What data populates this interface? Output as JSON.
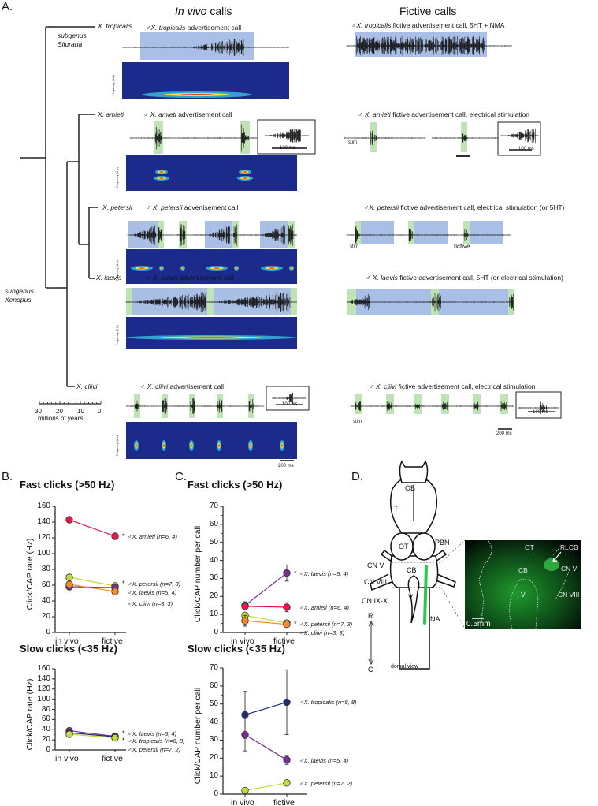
{
  "panels": {
    "a": "A.",
    "b": "B.",
    "c": "C.",
    "d": "D."
  },
  "headers": {
    "in_vivo_italic": "In vivo",
    "in_vivo_rest": " calls",
    "fictive": "Fictive calls"
  },
  "tree": {
    "species": [
      "X. tropicalis",
      "X. amieti",
      "X. petersii",
      "X. laevis",
      "X. cliivi"
    ],
    "subgenus_silurana": [
      "subgenus",
      "Silurana"
    ],
    "subgenus_xenopus": [
      "subgenus",
      "Xenopus"
    ],
    "scale_ticks": [
      "30",
      "20",
      "10",
      "0"
    ],
    "scale_label": "millions of years"
  },
  "in_vivo": [
    {
      "male": "♂",
      "sp": "X. tropicalis",
      "rest": " advertisement call"
    },
    {
      "male": "♂",
      "sp": "X. amieti",
      "rest": " advertisement call",
      "inset_scale": "100 ms"
    },
    {
      "male": "♂",
      "sp": "X. petersii",
      "rest": " advertisement call"
    },
    {
      "male": "♂",
      "sp": "X. laevis",
      "rest": " advertisement call"
    },
    {
      "male": "♂",
      "sp": "X. cliivi",
      "rest": " advertisement call",
      "inset_scale": "100 ms",
      "scale": "200 ms"
    }
  ],
  "spectrogram_axis": {
    "label": "Frequency (kHz)",
    "ticks": [
      "0",
      "1",
      "2",
      "3",
      "4",
      "5"
    ]
  },
  "fictive": [
    {
      "male": "♂",
      "sp": "X. tropicalis",
      "rest": " fictive advertisement call, 5HT + NMA"
    },
    {
      "male": "♂",
      "sp": "X. amieti",
      "rest": " fictive advertisement call, electrical stimulation",
      "stim": "stim",
      "inset_scale": "100 ms"
    },
    {
      "male": "♂",
      "sp": "X. petersii",
      "rest": " fictive advertisement call, electrical stimulation (or 5HT)",
      "stim": "stim",
      "note": "fictive"
    },
    {
      "male": "♂",
      "sp": "X. laevis",
      "rest": " fictive advertisement call, 5HT (or electrical stimulation)"
    },
    {
      "male": "♂",
      "sp": "X. cliivi",
      "rest": " fictive advertisement call, electrical stimulation",
      "stim": "stim",
      "inset_scale": "100 ms",
      "scale": "200 ms"
    }
  ],
  "colors": {
    "amieti": "#e8194a",
    "petersii": "#c5d93a",
    "laevis": "#7a2f98",
    "cliivi": "#f58a2a",
    "tropicalis": "#1f2a72",
    "highlight_blue": "#a9bfe6",
    "highlight_green": "#bfe3b4",
    "spectrogram_bg": "#1c2a8c"
  },
  "chart_data": [
    {
      "id": "B-fast",
      "type": "line",
      "title": "Fast clicks (>50 Hz)",
      "ylabel": "Click/CAP rate (Hz)",
      "categories": [
        "in vivo",
        "fictive"
      ],
      "ylim": [
        0,
        160
      ],
      "yticks": [
        "0",
        "20",
        "40",
        "60",
        "80",
        "100",
        "120",
        "140",
        "160"
      ],
      "series": [
        {
          "name": "♂X. amieti (n=6, 4)",
          "star": "*",
          "color": "amieti",
          "values": [
            143,
            122
          ],
          "err": [
            2,
            4
          ]
        },
        {
          "name": "♂X. petersii (n=7, 3)",
          "star": "*",
          "color": "petersii",
          "values": [
            70,
            59
          ],
          "err": [
            2,
            2
          ]
        },
        {
          "name": "♂X. laevis (n=5, 4)",
          "star": "",
          "color": "laevis",
          "values": [
            58,
            57
          ],
          "err": [
            2,
            2
          ]
        },
        {
          "name": "♂X. cliivi (n=3, 3)",
          "star": "",
          "color": "cliivi",
          "values": [
            61,
            52
          ],
          "err": [
            2,
            2
          ]
        }
      ]
    },
    {
      "id": "B-slow",
      "type": "line",
      "title": "Slow clicks (<35 Hz)",
      "ylabel": "Click/CAP rate (Hz)",
      "categories": [
        "in vivo",
        "fictive"
      ],
      "ylim": [
        0,
        160
      ],
      "yticks": [
        "0",
        "20",
        "40",
        "60",
        "80",
        "100",
        "120",
        "140",
        "160"
      ],
      "series": [
        {
          "name": "♂X. laevis (n=5, 4)",
          "star": "*",
          "color": "laevis",
          "values": [
            38,
            27
          ],
          "err": [
            2,
            2
          ]
        },
        {
          "name": "♂X. tropicalis (n=8, 8)",
          "star": "*",
          "color": "tropicalis",
          "values": [
            34,
            26
          ],
          "err": [
            2,
            2
          ]
        },
        {
          "name": "♂X. petersii (n=7, 2)",
          "star": "",
          "color": "petersii",
          "values": [
            31,
            24
          ],
          "err": [
            2,
            2
          ]
        }
      ]
    },
    {
      "id": "C-fast",
      "type": "line",
      "title": "Fast clicks (>50 Hz)",
      "ylabel": "Click/CAP number per call",
      "categories": [
        "in vivo",
        "fictive"
      ],
      "ylim": [
        0,
        70
      ],
      "yticks": [
        "0",
        "10",
        "20",
        "30",
        "40",
        "50",
        "60",
        "70"
      ],
      "series": [
        {
          "name": "♂X. laevis (n=5, 4)",
          "star": "*",
          "color": "laevis",
          "values": [
            15,
            33
          ],
          "err": [
            2,
            4.5
          ]
        },
        {
          "name": "♂X. amieti (n=6, 4)",
          "star": "",
          "color": "amieti",
          "values": [
            14.5,
            14
          ],
          "err": [
            2,
            2.5
          ]
        },
        {
          "name": "♂X. petersii (n=7, 3)",
          "star": "*",
          "color": "petersii",
          "values": [
            9.5,
            5.2
          ],
          "err": [
            1.5,
            1.5
          ]
        },
        {
          "name": "♂X. cliivi (n=3, 3)",
          "star": "",
          "color": "cliivi",
          "values": [
            6.5,
            4.5
          ],
          "err": [
            3,
            1
          ]
        }
      ]
    },
    {
      "id": "C-slow",
      "type": "line",
      "title": "Slow clicks (<35 Hz)",
      "ylabel": "Click/CAP number per call",
      "categories": [
        "in vivo",
        "fictive"
      ],
      "ylim": [
        0,
        70
      ],
      "yticks": [
        "0",
        "10",
        "20",
        "30",
        "40",
        "50",
        "60",
        "70"
      ],
      "series": [
        {
          "name": "♂X. tropicalis (n=8, 8)",
          "star": "",
          "color": "tropicalis",
          "values": [
            44,
            51
          ],
          "err": [
            13,
            18
          ]
        },
        {
          "name": "♂X. laevis (n=5, 4)",
          "star": "",
          "color": "laevis",
          "values": [
            33,
            19
          ],
          "err": [
            9,
            2.5
          ]
        },
        {
          "name": "♂X. petersii (n=7, 2)",
          "star": "",
          "color": "petersii",
          "values": [
            2,
            6.2
          ],
          "err": [
            1.5,
            1
          ]
        }
      ]
    }
  ],
  "brain": {
    "labels": [
      "OB",
      "T",
      "OT",
      "PBN",
      "CN V",
      "CB",
      "CN VIII",
      "V",
      "CN IX-X",
      "NA"
    ],
    "axis": [
      "R",
      "C"
    ],
    "view": "dorsal view",
    "photo_labels": [
      "OT",
      "RLCB",
      "CB",
      "CN V",
      "V",
      "CN VIII"
    ],
    "photo_scale": "0.5mm"
  }
}
